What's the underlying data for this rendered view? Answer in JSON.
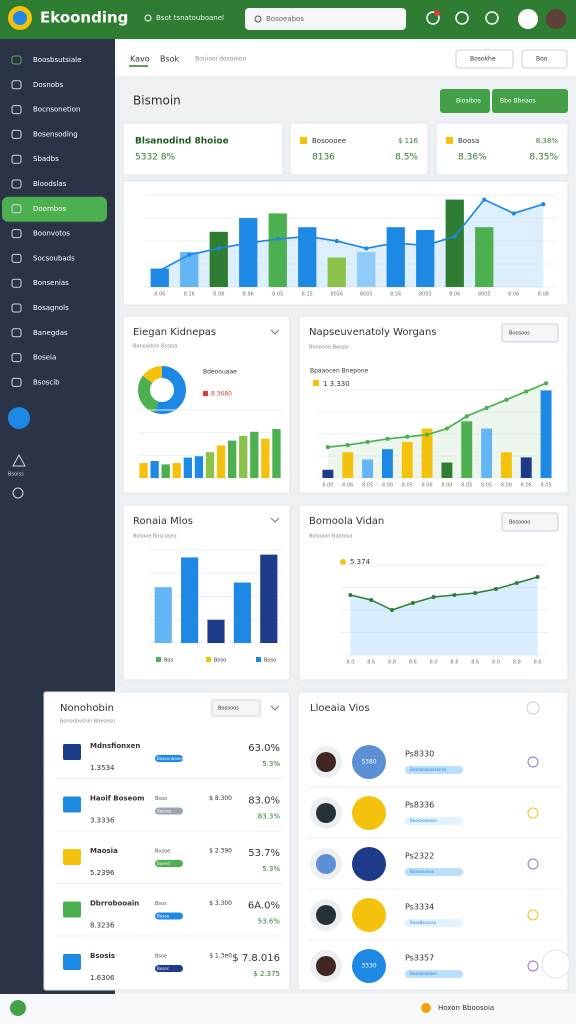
{
  "header": {
    "title": "Ekoonding",
    "search_hint": "Bsot tsnatouboanel",
    "search_box": "Bosoeabos"
  },
  "sidebar": {
    "items": [
      "Boosbsutsiale",
      "Dosnobs",
      "Bocnsonetion",
      "Bosensoding",
      "Sbadbs",
      "Bloodslas",
      "Doombos",
      "Boonvotos",
      "Socsoubads",
      "Bonsenias",
      "Bosagnols",
      "Banegdas",
      "Boseia",
      "Bsoscib"
    ],
    "active": 6,
    "footer": "Bsoiss"
  },
  "tabs": {
    "items": [
      "Kavo",
      "Bsok",
      "Bouiooi dosooion"
    ],
    "menu": "Bosokhe",
    "menu2": "Boo"
  },
  "section": {
    "title": "Bismoin",
    "button": "Biosibos",
    "button2": "Bbo Bbeaos"
  },
  "stats": [
    {
      "label": "Blsanodind 8hoioe",
      "value": "5332 8%"
    },
    {
      "label": "Bosoooee",
      "side": "$ 116",
      "value": "8136",
      "change": "8.5%",
      "color": "#f4c20d"
    },
    {
      "label": "Boosa",
      "side": "8.38%",
      "value": "8.36%",
      "change": "8.35%",
      "color": "#f4c20d"
    }
  ],
  "main_chart": {
    "categories": [
      "8.06",
      "8.16",
      "8.08",
      "8.96",
      "8.05",
      "8.15",
      "8056",
      "8005",
      "8.56",
      "8053",
      "8.06",
      "8005",
      "8.06",
      "8.08"
    ],
    "values": [
      20,
      38,
      60,
      75,
      80,
      65,
      32,
      38,
      65,
      62,
      95,
      65,
      null,
      null
    ],
    "colors": [
      "#1e88e5",
      "#64b5f6",
      "#2e7d32",
      "#1e88e5",
      "#4caf50",
      "#1e88e5",
      "#8bc34a",
      "#90caf9",
      "#1e88e5",
      "#1e88e5",
      "#2e7d32",
      "#4caf50",
      null,
      null
    ],
    "line": [
      18,
      35,
      42,
      48,
      52,
      55,
      50,
      42,
      48,
      45,
      55,
      95,
      80,
      90
    ],
    "line_color": "#1e88e5",
    "ylim": [
      0,
      100
    ]
  },
  "card_a": {
    "title": "Eiegan Kidnepas",
    "subtitle": "Bonoadoin Bssloa",
    "legend": "Bdeoouaae",
    "legend_value": "8 3680",
    "donut": {
      "values": [
        55,
        30,
        15
      ],
      "colors": [
        "#1e88e5",
        "#4caf50",
        "#f4c20d"
      ]
    },
    "values": [
      22,
      25,
      20,
      22,
      30,
      32,
      38,
      48,
      55,
      62,
      68,
      58,
      72
    ],
    "colors": [
      "#f4c20d",
      "#1e88e5",
      "#4caf50",
      "#f4c20d",
      "#1e88e5",
      "#1e88e5",
      "#8bc34a",
      "#f4c20d",
      "#4caf50",
      "#8bc34a",
      "#4caf50",
      "#f4c20d",
      "#4caf50"
    ],
    "ylim": [
      0,
      100
    ]
  },
  "card_b": {
    "title": "Napseuvenatoly Worgans",
    "subtitle": "Bonoone Bonpe",
    "menu": "Boosoos",
    "legend": "Bpaaocen Bnepone",
    "legend_value": "1 3.330",
    "categories": [
      "8.00",
      "8.06",
      "8.05",
      "8.00",
      "8.05",
      "8.06",
      "8.00",
      "8.05",
      "8.05",
      "8.00",
      "8.06",
      "8.05"
    ],
    "values": [
      8,
      25,
      18,
      28,
      35,
      48,
      15,
      55,
      48,
      25,
      20,
      85
    ],
    "colors": [
      "#1e3a8a",
      "#f4c20d",
      "#64b5f6",
      "#1e88e5",
      "#f4c20d",
      "#f4c20d",
      "#2e7d32",
      "#4caf50",
      "#64b5f6",
      "#f4c20d",
      "#1e3a8a",
      "#1e88e5"
    ],
    "line": [
      30,
      32,
      35,
      38,
      40,
      42,
      48,
      60,
      68,
      76,
      84,
      92
    ],
    "line_color": "#4caf50",
    "ylim": [
      0,
      100
    ]
  },
  "card_c": {
    "title": "Ronaia Mlos",
    "subtitle": "Bosooe Boscoseo",
    "values": [
      60,
      92,
      25,
      65,
      95
    ],
    "colors": [
      "#64b5f6",
      "#1e88e5",
      "#1e3a8a",
      "#1e88e5",
      "#1e3a8a"
    ],
    "legend": [
      "Bos",
      "Boso",
      "Boso"
    ],
    "legend_colors": [
      "#4caf50",
      "#f4c20d",
      "#1e88e5"
    ],
    "ylim": [
      0,
      100
    ]
  },
  "card_d": {
    "title": "Bomoola Vidan",
    "subtitle": "Bosoaon Baotosa",
    "menu": "Bosoooo",
    "value_label": "5.374",
    "categories": [
      "8.0",
      "8.6",
      "8.8",
      "8.6",
      "8.0",
      "8.6",
      "8.6",
      "8.0",
      "8.8",
      "8.6"
    ],
    "values": [
      60,
      55,
      45,
      52,
      58,
      60,
      62,
      66,
      72,
      78
    ],
    "line_color": "#2e7d32",
    "ylim": [
      0,
      100
    ]
  },
  "list_left": {
    "title": "Nonohobin",
    "subtitle": "Bonoobvsnin Boeoesn",
    "menu": "Boosoos",
    "rows": [
      {
        "name": "Mdnsfionxen",
        "value": "1.3534",
        "badge": "Bosonnbaoess",
        "badge_color": "#1e88e5",
        "percent": "63.0%",
        "change": "5.3%"
      },
      {
        "name": "Haoif Boseom",
        "value": "3.3336",
        "badge": "Bosoxe",
        "badge_color": "#9aa5b1",
        "tag": "Bsoo",
        "mid": "$ 8.300",
        "percent": "83.0%",
        "change": "83.3%"
      },
      {
        "name": "Maosia",
        "value": "5.2396",
        "badge": "Boeed",
        "badge_color": "#4caf50",
        "tag": "Bosoe",
        "mid": "$ 2.390",
        "percent": "53.7%",
        "change": "5.3%"
      },
      {
        "name": "Dbrrobooain",
        "value": "8.3236",
        "badge": "Bosoe",
        "badge_color": "#1e88e5",
        "tag": "Bsos",
        "mid": "$ 3.300",
        "percent": "6A.0%",
        "change": "53.6%"
      },
      {
        "name": "Bsosis",
        "value": "1.6306",
        "badge": "Bosoc",
        "badge_color": "#1e3a8a",
        "tag": "Bsoe",
        "mid": "$ 1.3e0",
        "percent": "$ 7.8.016",
        "change": "$ 2.375"
      }
    ]
  },
  "list_right": {
    "title": "Lloeaia Vios",
    "rows": [
      {
        "label": "Ps8330",
        "badge": "Bosoanooaosonce",
        "inner": "5380"
      },
      {
        "label": "Ps8336",
        "badge": "Boosnoooeso"
      },
      {
        "label": "Ps2322",
        "badge": "Bososnonoo"
      },
      {
        "label": "Ps3334",
        "badge": "Boos8socnsa"
      },
      {
        "label": "Ps3357",
        "badge": "Bosooonaaee",
        "inner": "3330"
      }
    ]
  },
  "footer": {
    "text": "Hoxon Bboosoia"
  }
}
